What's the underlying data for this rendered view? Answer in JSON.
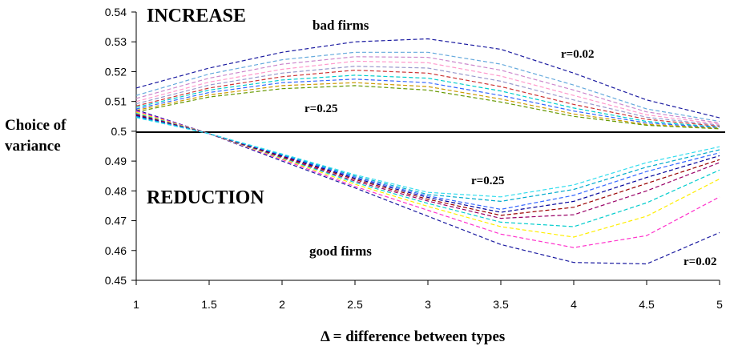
{
  "chart_data": {
    "type": "line",
    "xlabel": "Δ = difference between types",
    "ylabel_lines": [
      "Choice of",
      "variance"
    ],
    "x_ticks": [
      "1",
      "1.5",
      "2",
      "2.5",
      "3",
      "3.5",
      "4",
      "4.5",
      "5"
    ],
    "y_ticks": [
      "0.45",
      "0.46",
      "0.47",
      "0.48",
      "0.49",
      "0.5",
      "0.51",
      "0.52",
      "0.53",
      "0.54"
    ],
    "xlim": [
      1,
      5
    ],
    "ylim": [
      0.45,
      0.54
    ],
    "grid": false,
    "reference_line": 0.5,
    "annotations": {
      "increase": "INCREASE",
      "reduction": "REDUCTION",
      "bad_firms": "bad firms",
      "good_firms": "good firms",
      "bad_r_top": "r=0.02",
      "bad_r_bottom": "r=0.25",
      "good_r_top": "r=0.25",
      "good_r_bottom": "r=0.02"
    },
    "x": [
      1,
      1.5,
      2,
      2.5,
      3,
      3.5,
      4,
      4.5,
      5
    ],
    "series": [
      {
        "group": "bad",
        "color": "#1a1aa0",
        "values": [
          0.5145,
          0.5212,
          0.5265,
          0.53,
          0.531,
          0.5275,
          0.5195,
          0.5105,
          0.5045
        ]
      },
      {
        "group": "bad",
        "color": "#66aadd",
        "values": [
          0.512,
          0.5192,
          0.524,
          0.5265,
          0.5265,
          0.5225,
          0.5155,
          0.5075,
          0.5033
        ]
      },
      {
        "group": "bad",
        "color": "#cc88cc",
        "values": [
          0.511,
          0.5178,
          0.5225,
          0.525,
          0.5248,
          0.5205,
          0.5138,
          0.5065,
          0.5028
        ]
      },
      {
        "group": "bad",
        "color": "#ff99cc",
        "values": [
          0.51,
          0.5165,
          0.5208,
          0.5235,
          0.523,
          0.5185,
          0.512,
          0.5055,
          0.5024
        ]
      },
      {
        "group": "bad",
        "color": "#9999cc",
        "values": [
          0.5092,
          0.5155,
          0.5195,
          0.5218,
          0.5212,
          0.5168,
          0.5105,
          0.5047,
          0.502
        ]
      },
      {
        "group": "bad",
        "color": "#cc3333",
        "values": [
          0.5085,
          0.5145,
          0.5183,
          0.5205,
          0.5195,
          0.515,
          0.509,
          0.504,
          0.5017
        ]
      },
      {
        "group": "bad",
        "color": "#00cccc",
        "values": [
          0.508,
          0.5138,
          0.5172,
          0.5188,
          0.5178,
          0.5135,
          0.5078,
          0.5033,
          0.5014
        ]
      },
      {
        "group": "bad",
        "color": "#3366ff",
        "values": [
          0.5075,
          0.513,
          0.5163,
          0.5175,
          0.5163,
          0.512,
          0.5068,
          0.5028,
          0.5012
        ]
      },
      {
        "group": "bad",
        "color": "#cc9900",
        "values": [
          0.507,
          0.5122,
          0.5153,
          0.5163,
          0.515,
          0.5108,
          0.5058,
          0.5023,
          0.501
        ]
      },
      {
        "group": "bad",
        "color": "#669900",
        "values": [
          0.5065,
          0.5115,
          0.5143,
          0.5153,
          0.5138,
          0.5098,
          0.505,
          0.502,
          0.5008
        ]
      },
      {
        "group": "good",
        "color": "#1a1aa0",
        "values": [
          0.5072,
          0.4992,
          0.49,
          0.481,
          0.4715,
          0.462,
          0.456,
          0.4555,
          0.466
        ]
      },
      {
        "group": "good",
        "color": "#ff33cc",
        "values": [
          0.5068,
          0.4992,
          0.4905,
          0.4815,
          0.4735,
          0.4655,
          0.461,
          0.465,
          0.478
        ]
      },
      {
        "group": "good",
        "color": "#ffee00",
        "values": [
          0.5064,
          0.4992,
          0.4908,
          0.4822,
          0.4748,
          0.468,
          0.4645,
          0.4715,
          0.484
        ]
      },
      {
        "group": "good",
        "color": "#00cccc",
        "values": [
          0.506,
          0.4992,
          0.4911,
          0.4828,
          0.4758,
          0.4695,
          0.468,
          0.476,
          0.487
        ]
      },
      {
        "group": "good",
        "color": "#990066",
        "values": [
          0.5057,
          0.4992,
          0.4913,
          0.4833,
          0.4766,
          0.4708,
          0.472,
          0.48,
          0.4895
        ]
      },
      {
        "group": "good",
        "color": "#990000",
        "values": [
          0.5054,
          0.4992,
          0.4916,
          0.4838,
          0.4772,
          0.4718,
          0.4745,
          0.4825,
          0.4905
        ]
      },
      {
        "group": "good",
        "color": "#000099",
        "values": [
          0.5052,
          0.4992,
          0.4918,
          0.4842,
          0.4778,
          0.4728,
          0.4765,
          0.4845,
          0.4918
        ]
      },
      {
        "group": "good",
        "color": "#3366ff",
        "values": [
          0.505,
          0.4992,
          0.492,
          0.4846,
          0.4783,
          0.4738,
          0.4785,
          0.4865,
          0.4928
        ]
      },
      {
        "group": "good",
        "color": "#00aacc",
        "values": [
          0.5048,
          0.4992,
          0.4922,
          0.485,
          0.4788,
          0.4765,
          0.4805,
          0.488,
          0.4938
        ]
      },
      {
        "group": "good",
        "color": "#33ddee",
        "values": [
          0.5046,
          0.4992,
          0.4924,
          0.4854,
          0.4795,
          0.478,
          0.482,
          0.4895,
          0.4948
        ]
      }
    ]
  }
}
